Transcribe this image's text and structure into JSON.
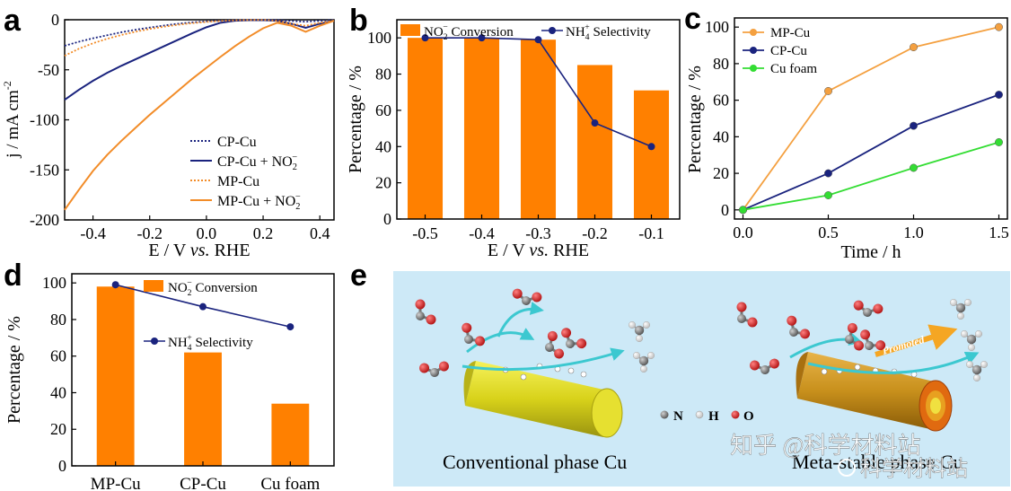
{
  "panel_letters": [
    "a",
    "b",
    "c",
    "d",
    "e"
  ],
  "chart_data": [
    {
      "panel": "a",
      "type": "line",
      "xlabel_prefix": "E / V ",
      "xlabel_italic": "vs.",
      "xlabel_suffix": " RHE",
      "ylabel": "j / mA cm",
      "ylabel_sup": "-2",
      "xlim": [
        -0.5,
        0.45
      ],
      "ylim": [
        -200,
        0
      ],
      "xticks": [
        -0.4,
        -0.2,
        0.0,
        0.2,
        0.4
      ],
      "xtick_labels": [
        "-0.4",
        "-0.2",
        "0.0",
        "0.2",
        "0.4"
      ],
      "yticks": [
        0,
        -50,
        -100,
        -150,
        -200
      ],
      "ytick_labels": [
        "0",
        "-50",
        "-100",
        "-150",
        "-200"
      ],
      "legend_position": "bottom-right",
      "series": [
        {
          "name": "CP-Cu",
          "color": "#1a237e",
          "dash": "dotted",
          "x": [
            -0.5,
            -0.45,
            -0.4,
            -0.35,
            -0.3,
            -0.25,
            -0.2,
            -0.15,
            -0.1,
            -0.05,
            0.0,
            0.05,
            0.1,
            0.15,
            0.2,
            0.25,
            0.3,
            0.35,
            0.4,
            0.45
          ],
          "y": [
            -26,
            -22,
            -18.5,
            -15.5,
            -12.5,
            -10,
            -7.8,
            -5.8,
            -4,
            -2.6,
            -1.6,
            -0.9,
            -0.5,
            -0.3,
            -0.2,
            -0.3,
            -1.2,
            -2,
            -1,
            -0.3
          ]
        },
        {
          "name": "CP-Cu + NO",
          "sub": "2",
          "sup": "−",
          "color": "#1a237e",
          "dash": "solid",
          "x": [
            -0.5,
            -0.45,
            -0.4,
            -0.35,
            -0.3,
            -0.25,
            -0.2,
            -0.15,
            -0.1,
            -0.05,
            0.0,
            0.05,
            0.1,
            0.15,
            0.2,
            0.25,
            0.3,
            0.35,
            0.4,
            0.45
          ],
          "y": [
            -80,
            -70,
            -61,
            -53,
            -46,
            -39.5,
            -33,
            -26.5,
            -20,
            -13.5,
            -7.5,
            -3,
            -1,
            -0.5,
            -0.5,
            -1,
            -4,
            -8,
            -4,
            -1
          ]
        },
        {
          "name": "MP-Cu",
          "color": "#f28c28",
          "dash": "dotted",
          "x": [
            -0.5,
            -0.45,
            -0.4,
            -0.35,
            -0.3,
            -0.25,
            -0.2,
            -0.15,
            -0.1,
            -0.05,
            0.0,
            0.05,
            0.1,
            0.15,
            0.2,
            0.25,
            0.3,
            0.35,
            0.4,
            0.45
          ],
          "y": [
            -36,
            -29,
            -23.5,
            -19,
            -15.2,
            -12,
            -9.2,
            -7,
            -5,
            -3.4,
            -2.2,
            -1.2,
            -0.6,
            -0.3,
            -0.2,
            -1,
            -4,
            -6,
            -3,
            -1
          ]
        },
        {
          "name": "MP-Cu + NO",
          "sub": "2",
          "sup": "−",
          "color": "#f28c28",
          "dash": "solid",
          "x": [
            -0.5,
            -0.45,
            -0.4,
            -0.35,
            -0.3,
            -0.25,
            -0.2,
            -0.15,
            -0.1,
            -0.05,
            0.0,
            0.05,
            0.1,
            0.15,
            0.2,
            0.25,
            0.3,
            0.35,
            0.4,
            0.45
          ],
          "y": [
            -190,
            -170,
            -151,
            -135,
            -121,
            -108,
            -95,
            -83,
            -71,
            -59,
            -48,
            -37,
            -26.5,
            -17,
            -8.5,
            -3,
            -6,
            -12,
            -6,
            -1
          ]
        }
      ]
    },
    {
      "panel": "b",
      "type": "bar",
      "categories": [
        "-0.5",
        "-0.4",
        "-0.3",
        "-0.2",
        "-0.1"
      ],
      "xlabel_prefix": "E / V ",
      "xlabel_italic": "vs.",
      "xlabel_suffix": " RHE",
      "ylabel": "Percentage / %",
      "ylim": [
        0,
        110
      ],
      "yticks": [
        0,
        20,
        40,
        60,
        80,
        100
      ],
      "legend_position": "top",
      "series": [
        {
          "name": "NO",
          "sub": "2",
          "sup": "−",
          "name_suffix": " Conversion",
          "kind": "bar",
          "color": "#ff8000",
          "values": [
            100,
            100,
            99,
            85,
            71
          ]
        },
        {
          "name": "NH",
          "sub": "4",
          "sup": "+",
          "name_suffix": " Selectivity",
          "kind": "line",
          "color": "#1a237e",
          "values": [
            100,
            100,
            99,
            53,
            40
          ]
        }
      ]
    },
    {
      "panel": "c",
      "type": "line",
      "x": [
        0,
        0.5,
        1.0,
        1.5
      ],
      "xticks": [
        0.0,
        0.5,
        1.0,
        1.5
      ],
      "xtick_labels": [
        "0.0",
        "0.5",
        "1.0",
        "1.5"
      ],
      "xlabel": "Time / h",
      "ylabel": "Percentage / %",
      "xlim": [
        -0.05,
        1.55
      ],
      "ylim": [
        -5,
        105
      ],
      "yticks": [
        0,
        20,
        40,
        60,
        80,
        100
      ],
      "legend_position": "top-left",
      "series": [
        {
          "name": "MP-Cu",
          "color": "#f4a040",
          "values": [
            0,
            65,
            89,
            100
          ]
        },
        {
          "name": "CP-Cu",
          "color": "#1a237e",
          "values": [
            0,
            20,
            46,
            63
          ]
        },
        {
          "name": "Cu foam",
          "color": "#33dd33",
          "values": [
            0,
            8,
            23,
            37
          ]
        }
      ]
    },
    {
      "panel": "d",
      "type": "bar",
      "categories": [
        "MP-Cu",
        "CP-Cu",
        "Cu foam"
      ],
      "ylabel": "Percentage / %",
      "ylim": [
        0,
        105
      ],
      "yticks": [
        0,
        20,
        40,
        60,
        80,
        100
      ],
      "series": [
        {
          "name": "NO",
          "sub": "2",
          "sup": "−",
          "name_suffix": " Conversion",
          "kind": "bar",
          "color": "#ff8000",
          "values": [
            98,
            62,
            34
          ]
        },
        {
          "name": "NH",
          "sub": "4",
          "sup": "+",
          "name_suffix": " Selectivity",
          "kind": "line",
          "color": "#1a237e",
          "values": [
            99,
            87,
            76
          ]
        }
      ]
    }
  ],
  "schematic": {
    "left_caption": "Conventional phase Cu",
    "right_caption": "Meta-stable phase Cu",
    "promoted_label": "Promoted",
    "atom_legend": [
      {
        "symbol": "N",
        "color": "#808080"
      },
      {
        "symbol": "H",
        "color": "#f0f0f0"
      },
      {
        "symbol": "O",
        "color": "#d02020"
      }
    ],
    "background": "#cde9f7"
  },
  "watermark": {
    "line1": "知乎 @科学材料站",
    "line2": "科学材料站"
  }
}
